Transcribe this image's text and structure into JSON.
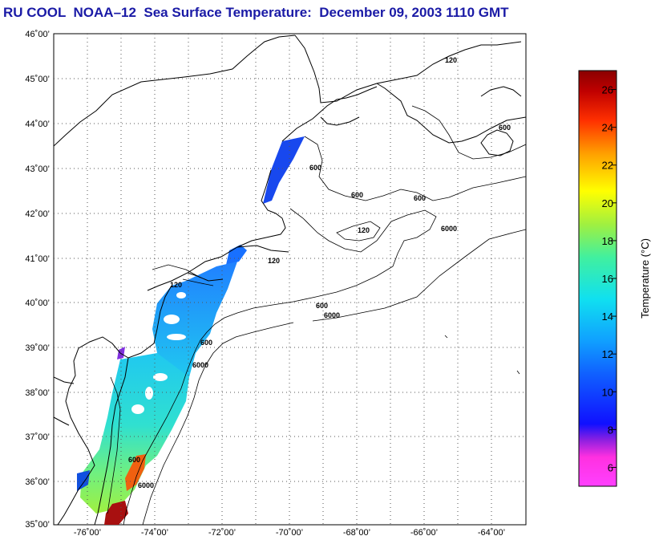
{
  "title": "RU COOL  NOAA–12  Sea Surface Temperature:  December 09, 2003 1110 GMT",
  "colors": {
    "title": "#1a1aa6",
    "coast": "#000000",
    "grid": "#555555"
  },
  "chart_data": {
    "type": "heatmap",
    "title": "RU COOL  NOAA–12  Sea Surface Temperature:  December 09, 2003 1110 GMT",
    "x_range": [
      -77,
      -63
    ],
    "y_range": [
      35,
      46
    ],
    "lon_ticks": [
      {
        "value": -76,
        "label": "-76˚00’"
      },
      {
        "value": -74,
        "label": "-74˚00’"
      },
      {
        "value": -72,
        "label": "-72˚00’"
      },
      {
        "value": -70,
        "label": "-70˚00’"
      },
      {
        "value": -68,
        "label": "-68˚00’"
      },
      {
        "value": -66,
        "label": "-66˚00’"
      },
      {
        "value": -64,
        "label": "-64˚00’"
      }
    ],
    "lat_ticks": [
      {
        "value": 46,
        "label": "46˚00’"
      },
      {
        "value": 45,
        "label": "45˚00’"
      },
      {
        "value": 44,
        "label": "44˚00’"
      },
      {
        "value": 43,
        "label": "43˚00’"
      },
      {
        "value": 42,
        "label": "42˚00’"
      },
      {
        "value": 41,
        "label": "41˚00’"
      },
      {
        "value": 40,
        "label": "40˚00’"
      },
      {
        "value": 39,
        "label": "39˚00’"
      },
      {
        "value": 38,
        "label": "38˚00’"
      },
      {
        "value": 37,
        "label": "37˚00’"
      },
      {
        "value": 36,
        "label": "36˚00’"
      },
      {
        "value": 35,
        "label": "35˚00’"
      }
    ],
    "grid": true,
    "contour_labels": [
      "120",
      "600",
      "6000"
    ],
    "colorbar": {
      "label": "Temperature (°C)",
      "min": 5,
      "max": 27,
      "ticks": [
        6,
        8,
        10,
        12,
        14,
        16,
        18,
        20,
        22,
        24,
        26
      ],
      "colors": [
        "#ff40ff",
        "#7a1fd8",
        "#1010ff",
        "#1080ff",
        "#10e0f0",
        "#40f0a0",
        "#a0f040",
        "#ffff00",
        "#ffa000",
        "#ff3000",
        "#c00000",
        "#8a0000"
      ]
    }
  }
}
